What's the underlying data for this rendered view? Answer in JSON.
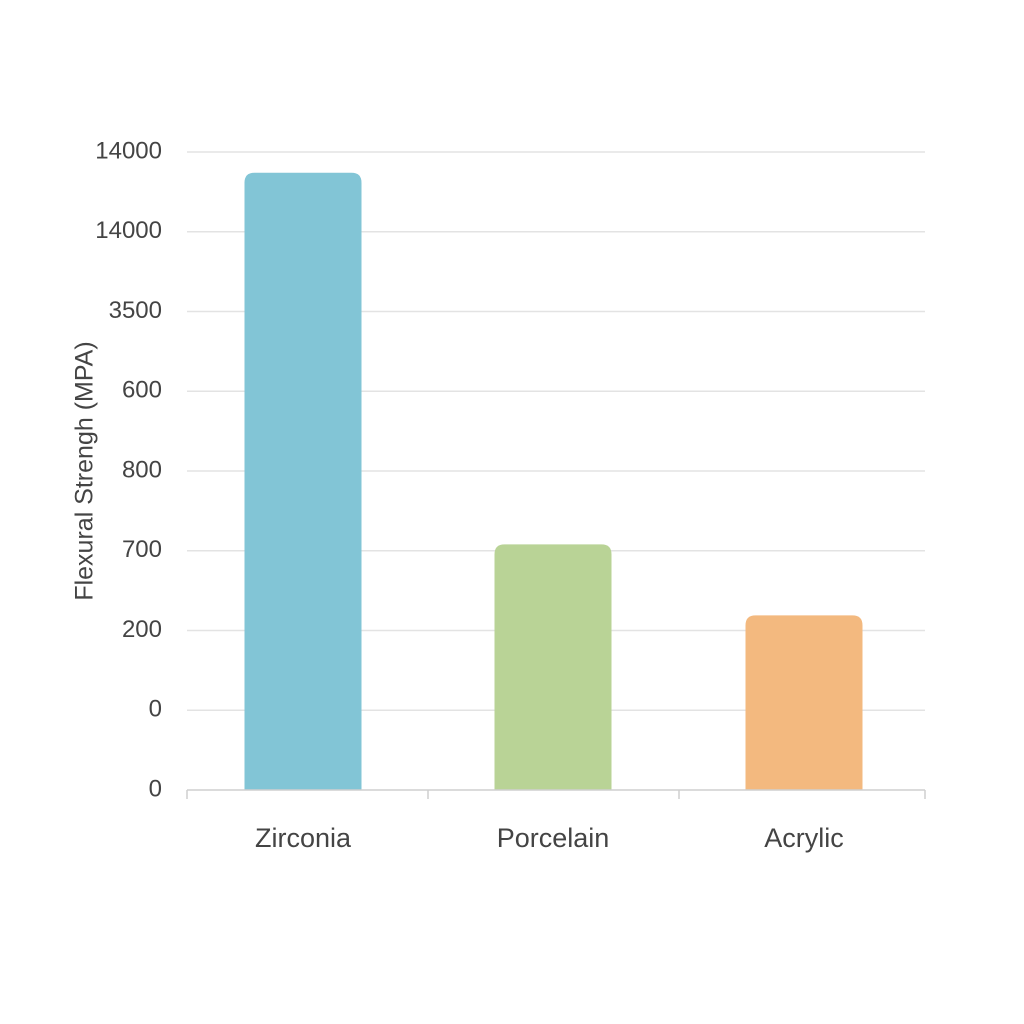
{
  "chart_data": {
    "type": "bar",
    "y_label": "Flexural Strengh (MPA)",
    "categories": [
      "Zirconia",
      "Porcelain",
      "Acrylic"
    ],
    "values": [
      7.74,
      3.08,
      2.19
    ],
    "colors": [
      "#82c5d6",
      "#b9d396",
      "#f3b97f"
    ],
    "ylim": [
      0,
      8
    ],
    "yticks": [
      {
        "value": 0,
        "label": "0"
      },
      {
        "value": 1,
        "label": "0"
      },
      {
        "value": 2,
        "label": "200"
      },
      {
        "value": 3,
        "label": "700"
      },
      {
        "value": 4,
        "label": "800"
      },
      {
        "value": 5,
        "label": "600"
      },
      {
        "value": 6,
        "label": "3500"
      },
      {
        "value": 7,
        "label": "14000"
      },
      {
        "value": 8,
        "label": "14000"
      }
    ],
    "grid": true
  }
}
